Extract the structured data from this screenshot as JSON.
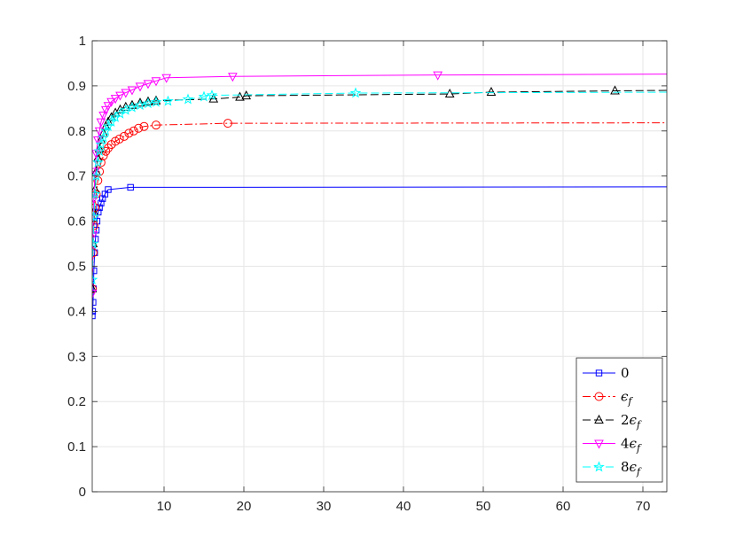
{
  "chart_data": {
    "type": "line",
    "title": "",
    "xlabel": "",
    "ylabel": "",
    "xlim": [
      1,
      73
    ],
    "ylim": [
      0,
      1
    ],
    "x_ticks": [
      10,
      20,
      30,
      40,
      50,
      60,
      70
    ],
    "y_ticks": [
      0,
      0.1,
      0.2,
      0.3,
      0.4,
      0.5,
      0.6,
      0.7,
      0.8,
      0.9,
      1
    ],
    "x_tick_labels": [
      "10",
      "20",
      "30",
      "40",
      "50",
      "60",
      "70"
    ],
    "y_tick_labels": [
      "0",
      "0.1",
      "0.2",
      "0.3",
      "0.4",
      "0.5",
      "0.6",
      "0.7",
      "0.8",
      "0.9",
      "1"
    ],
    "grid": true,
    "legend_position": "bottom-right",
    "series": [
      {
        "name": "0",
        "legend": {
          "coef": "",
          "symbol": "0",
          "sub": ""
        },
        "color": "#0000ff",
        "dash": "solid",
        "marker": "square",
        "points": [
          [
            1.0,
            0.39
          ],
          [
            1.05,
            0.4
          ],
          [
            1.1,
            0.42
          ],
          [
            1.15,
            0.45
          ],
          [
            1.2,
            0.49
          ],
          [
            1.3,
            0.53
          ],
          [
            1.4,
            0.56
          ],
          [
            1.5,
            0.58
          ],
          [
            1.6,
            0.6
          ],
          [
            1.75,
            0.62
          ],
          [
            1.9,
            0.63
          ],
          [
            2.1,
            0.64
          ],
          [
            2.3,
            0.65
          ],
          [
            2.6,
            0.66
          ],
          [
            3.0,
            0.67
          ],
          [
            5.8,
            0.675
          ],
          [
            73,
            0.676
          ]
        ]
      },
      {
        "name": "ε_f",
        "legend": {
          "coef": "",
          "symbol": "ϵ",
          "sub": "f"
        },
        "color": "#ff0000",
        "dash": "dashdot",
        "marker": "circle",
        "points": [
          [
            1.0,
            0.45
          ],
          [
            1.1,
            0.53
          ],
          [
            1.2,
            0.59
          ],
          [
            1.35,
            0.63
          ],
          [
            1.5,
            0.66
          ],
          [
            1.7,
            0.69
          ],
          [
            1.9,
            0.71
          ],
          [
            2.1,
            0.73
          ],
          [
            2.4,
            0.745
          ],
          [
            2.7,
            0.755
          ],
          [
            3.0,
            0.762
          ],
          [
            3.4,
            0.77
          ],
          [
            3.9,
            0.777
          ],
          [
            4.4,
            0.782
          ],
          [
            5.0,
            0.788
          ],
          [
            5.6,
            0.795
          ],
          [
            6.2,
            0.8
          ],
          [
            6.8,
            0.806
          ],
          [
            7.5,
            0.81
          ],
          [
            9.0,
            0.813
          ],
          [
            18.0,
            0.817
          ],
          [
            73,
            0.818
          ]
        ]
      },
      {
        "name": "2ε_f",
        "legend": {
          "coef": "2",
          "symbol": "ϵ",
          "sub": "f"
        },
        "color": "#000000",
        "dash": "dashed",
        "marker": "triangle-up",
        "points": [
          [
            1.0,
            0.45
          ],
          [
            1.1,
            0.55
          ],
          [
            1.2,
            0.62
          ],
          [
            1.35,
            0.67
          ],
          [
            1.5,
            0.71
          ],
          [
            1.7,
            0.74
          ],
          [
            1.9,
            0.76
          ],
          [
            2.1,
            0.78
          ],
          [
            2.4,
            0.795
          ],
          [
            2.7,
            0.81
          ],
          [
            3.0,
            0.82
          ],
          [
            3.4,
            0.83
          ],
          [
            3.9,
            0.84
          ],
          [
            4.5,
            0.847
          ],
          [
            5.2,
            0.853
          ],
          [
            6.0,
            0.857
          ],
          [
            7.0,
            0.862
          ],
          [
            8.0,
            0.865
          ],
          [
            9.0,
            0.867
          ],
          [
            16.2,
            0.871
          ],
          [
            19.5,
            0.875
          ],
          [
            20.3,
            0.878
          ],
          [
            45.8,
            0.882
          ],
          [
            51.0,
            0.886
          ],
          [
            66.5,
            0.889
          ],
          [
            73,
            0.89
          ]
        ]
      },
      {
        "name": "4ε_f",
        "legend": {
          "coef": "4",
          "symbol": "ϵ",
          "sub": "f"
        },
        "color": "#ff00ff",
        "dash": "solid",
        "marker": "triangle-down",
        "points": [
          [
            1.0,
            0.44
          ],
          [
            1.1,
            0.57
          ],
          [
            1.2,
            0.65
          ],
          [
            1.35,
            0.71
          ],
          [
            1.5,
            0.75
          ],
          [
            1.7,
            0.78
          ],
          [
            1.9,
            0.8
          ],
          [
            2.1,
            0.82
          ],
          [
            2.4,
            0.835
          ],
          [
            2.7,
            0.847
          ],
          [
            3.0,
            0.856
          ],
          [
            3.4,
            0.865
          ],
          [
            3.9,
            0.872
          ],
          [
            4.5,
            0.879
          ],
          [
            5.2,
            0.885
          ],
          [
            6.0,
            0.891
          ],
          [
            7.0,
            0.899
          ],
          [
            8.0,
            0.905
          ],
          [
            9.0,
            0.911
          ],
          [
            10.3,
            0.918
          ],
          [
            18.6,
            0.921
          ],
          [
            44.3,
            0.924
          ],
          [
            73,
            0.926
          ]
        ]
      },
      {
        "name": "8ε_f",
        "legend": {
          "coef": "8",
          "symbol": "ϵ",
          "sub": "f"
        },
        "color": "#00ffff",
        "dash": "dashed",
        "marker": "star",
        "points": [
          [
            1.0,
            0.47
          ],
          [
            1.1,
            0.55
          ],
          [
            1.2,
            0.61
          ],
          [
            1.35,
            0.66
          ],
          [
            1.5,
            0.7
          ],
          [
            1.7,
            0.73
          ],
          [
            1.9,
            0.755
          ],
          [
            2.1,
            0.77
          ],
          [
            2.4,
            0.785
          ],
          [
            2.7,
            0.8
          ],
          [
            3.0,
            0.81
          ],
          [
            3.4,
            0.82
          ],
          [
            3.9,
            0.83
          ],
          [
            4.5,
            0.838
          ],
          [
            5.2,
            0.846
          ],
          [
            6.0,
            0.852
          ],
          [
            7.0,
            0.857
          ],
          [
            8.0,
            0.861
          ],
          [
            9.0,
            0.864
          ],
          [
            10.5,
            0.866
          ],
          [
            13.0,
            0.87
          ],
          [
            15.0,
            0.876
          ],
          [
            16.0,
            0.879
          ],
          [
            34.0,
            0.884
          ],
          [
            73,
            0.886
          ]
        ]
      }
    ]
  }
}
